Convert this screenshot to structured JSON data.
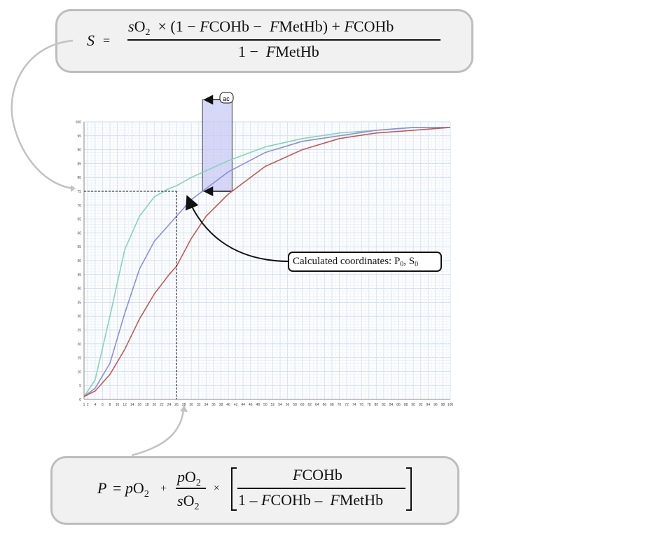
{
  "top_formula": {
    "lhs": "S",
    "eq": "=",
    "numerator": {
      "s": "s",
      "o": "O",
      "two": "2",
      "times": "×",
      "open": "(1 −",
      "fcohb": "F",
      "cohb": "COHb",
      "minus": "−",
      "fmethb": "F",
      "methb": "MetHb",
      "close": ")",
      "plus": "+",
      "f2": "F",
      "cohb2": "COHb"
    },
    "denominator": {
      "one": "1 −",
      "f": "F",
      "methb": "MetHb"
    }
  },
  "bottom_formula": {
    "lhs": "P",
    "eq": "= ",
    "p": "p",
    "o": "O",
    "two": "2",
    "plus": "+",
    "frac_num": {
      "p": "p",
      "o": "O",
      "two": "2"
    },
    "frac_den": {
      "s": "s",
      "o": "O",
      "two": "2"
    },
    "times": "×",
    "bracket_num": {
      "f": "F",
      "cohb": "COHb"
    },
    "bracket_den": {
      "one": "1 –",
      "f": "F",
      "cohb": "COHb",
      "minus": "–",
      "f2": "F",
      "methb": "MetHb"
    }
  },
  "annotation": {
    "text": "Calculated coordinates: P",
    "sub0": "0",
    "sep": ", S",
    "sub1": "0"
  },
  "shift_label": "ac",
  "colors": {
    "green": "#86d4b4",
    "blue": "#8c8fd8",
    "red": "#c25a50",
    "shade": "#c9c9f4",
    "grid": "#d6e4f4"
  },
  "chart_data": {
    "type": "line",
    "xlim": [
      1,
      100
    ],
    "ylim": [
      0,
      100
    ],
    "x_ticks": [
      1,
      2,
      4,
      6,
      8,
      10,
      12,
      14,
      16,
      18,
      20,
      22,
      24,
      26,
      28,
      30,
      32,
      34,
      36,
      38,
      40,
      42,
      44,
      46,
      48,
      50,
      52,
      54,
      56,
      58,
      60,
      62,
      64,
      66,
      68,
      70,
      72,
      74,
      76,
      78,
      80,
      82,
      84,
      86,
      88,
      90,
      92,
      94,
      96,
      98,
      100
    ],
    "y_ticks": [
      0,
      5,
      10,
      15,
      20,
      25,
      30,
      35,
      40,
      45,
      50,
      55,
      60,
      65,
      70,
      75,
      80,
      85,
      90,
      95,
      100
    ],
    "grid": true,
    "series": [
      {
        "color": "green",
        "x": [
          1,
          4,
          8,
          12,
          16,
          20,
          24,
          26,
          30,
          40,
          50,
          60,
          70,
          80,
          90,
          100
        ],
        "y": [
          1,
          7,
          30,
          54,
          66,
          73,
          76,
          77,
          80,
          86,
          91,
          94,
          96,
          97,
          98,
          98
        ]
      },
      {
        "color": "blue",
        "x": [
          1,
          4,
          8,
          12,
          16,
          20,
          24,
          26,
          30,
          40,
          50,
          60,
          70,
          80,
          90,
          100
        ],
        "y": [
          1,
          4,
          13,
          31,
          47,
          57,
          63,
          66,
          72,
          82,
          89,
          93,
          95,
          97,
          98,
          98
        ]
      },
      {
        "color": "red",
        "x": [
          1,
          4,
          8,
          12,
          16,
          20,
          24,
          26,
          30,
          34,
          40,
          50,
          60,
          70,
          80,
          90,
          100
        ],
        "y": [
          1,
          3,
          9,
          18,
          29,
          38,
          45,
          48,
          58,
          66,
          74,
          84,
          90,
          94,
          96,
          97,
          98
        ]
      }
    ],
    "point": {
      "x": 26,
      "y": 75
    },
    "shaded_x_range": [
      33,
      41
    ],
    "shaded_y_range": [
      75,
      108
    ]
  }
}
